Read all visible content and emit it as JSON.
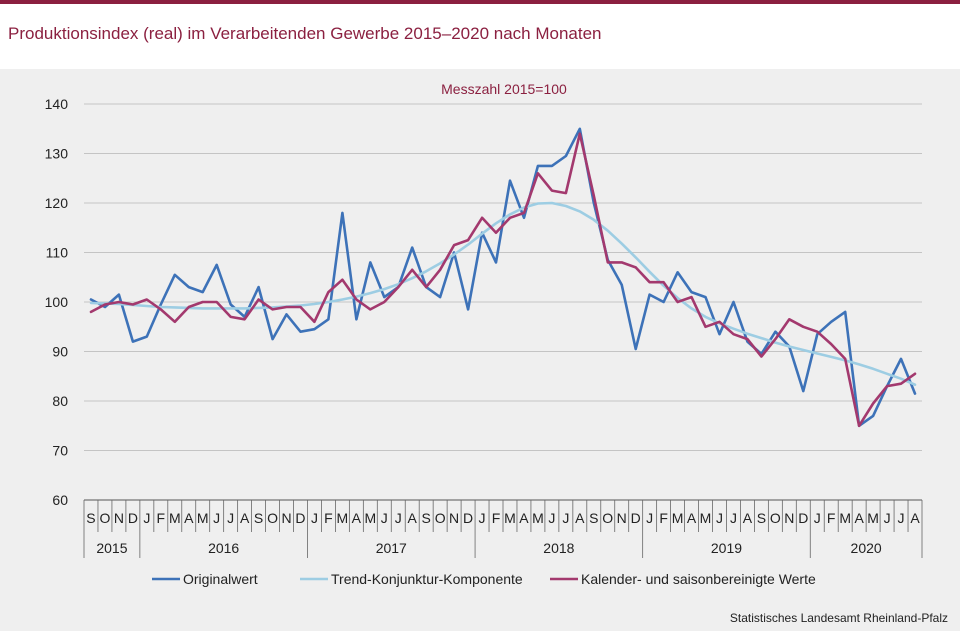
{
  "header": {
    "title": "Produktionsindex (real) im Verarbeitenden Gewerbe 2015–2020 nach Monaten"
  },
  "source": "Statistisches Landesamt Rheinland-Pfalz",
  "chart_data": {
    "type": "line",
    "subtitle": "Messzahl 2015=100",
    "xlabel": "",
    "ylabel": "",
    "ylim": [
      60,
      140
    ],
    "yticks": [
      60,
      70,
      80,
      90,
      100,
      110,
      120,
      130,
      140
    ],
    "grid": true,
    "legend": "bottom",
    "month_labels": [
      "S",
      "O",
      "N",
      "D",
      "J",
      "F",
      "M",
      "A",
      "M",
      "J",
      "J",
      "A",
      "S",
      "O",
      "N",
      "D",
      "J",
      "F",
      "M",
      "A",
      "M",
      "J",
      "J",
      "A",
      "S",
      "O",
      "N",
      "D",
      "J",
      "F",
      "M",
      "A",
      "M",
      "J",
      "J",
      "A",
      "S",
      "O",
      "N",
      "D",
      "J",
      "F",
      "M",
      "A",
      "M",
      "J",
      "J",
      "A",
      "S",
      "O",
      "N",
      "D",
      "J",
      "F",
      "M",
      "A",
      "M",
      "J",
      "J",
      "A"
    ],
    "year_groups": [
      {
        "label": "2015",
        "count": 4
      },
      {
        "label": "2016",
        "count": 12
      },
      {
        "label": "2017",
        "count": 12
      },
      {
        "label": "2018",
        "count": 12
      },
      {
        "label": "2019",
        "count": 12
      },
      {
        "label": "2020",
        "count": 8
      }
    ],
    "series": [
      {
        "name": "Originalwert",
        "color": "#3d72b8",
        "values": [
          100.5,
          99.0,
          101.5,
          92.0,
          93.0,
          99.5,
          105.5,
          103.0,
          102.0,
          107.5,
          99.5,
          97.0,
          103.0,
          92.5,
          97.5,
          94.0,
          94.5,
          96.5,
          118.0,
          96.5,
          108.0,
          101.0,
          103.0,
          111.0,
          103.0,
          101.0,
          110.0,
          98.5,
          114.0,
          108.0,
          124.5,
          117.0,
          127.5,
          127.5,
          129.5,
          135.0,
          120.0,
          108.5,
          103.5,
          90.5,
          101.5,
          100.0,
          106.0,
          102.0,
          101.0,
          93.5,
          100.0,
          92.0,
          89.5,
          94.0,
          91.0,
          82.0,
          93.5,
          96.0,
          98.0,
          75.0,
          77.0,
          83.0,
          88.5,
          81.5
        ]
      },
      {
        "name": "Trend-Konjunktur-Komponente",
        "color": "#9dcde3",
        "values": [
          99.8,
          99.7,
          99.6,
          99.4,
          99.2,
          99.0,
          98.9,
          98.8,
          98.7,
          98.7,
          98.7,
          98.7,
          98.8,
          98.9,
          99.1,
          99.3,
          99.6,
          100.0,
          100.5,
          101.1,
          101.8,
          102.6,
          103.6,
          104.8,
          106.2,
          107.8,
          109.6,
          111.6,
          113.8,
          115.9,
          117.7,
          119.1,
          119.9,
          120.0,
          119.4,
          118.3,
          116.6,
          114.4,
          111.8,
          109.0,
          106.1,
          103.3,
          100.8,
          98.7,
          97.0,
          95.7,
          94.6,
          93.6,
          92.7,
          91.8,
          91.0,
          90.3,
          89.6,
          88.9,
          88.2,
          87.4,
          86.5,
          85.5,
          84.5,
          83.3
        ]
      },
      {
        "name": "Kalender- und saisonbereinigte Werte",
        "color": "#a3396e",
        "values": [
          98.0,
          99.5,
          100.0,
          99.5,
          100.5,
          98.5,
          96.0,
          99.0,
          100.0,
          100.0,
          97.0,
          96.5,
          100.5,
          98.5,
          99.0,
          99.0,
          96.0,
          102.0,
          104.5,
          100.5,
          98.5,
          100.0,
          103.0,
          106.5,
          103.0,
          106.5,
          111.5,
          112.5,
          117.0,
          114.0,
          117.0,
          118.0,
          126.0,
          122.5,
          122.0,
          134.0,
          121.5,
          108.0,
          108.0,
          107.0,
          104.0,
          104.0,
          100.0,
          101.0,
          95.0,
          96.0,
          93.5,
          92.5,
          89.0,
          92.5,
          96.5,
          95.0,
          94.0,
          91.5,
          88.5,
          75.0,
          79.5,
          83.0,
          83.5,
          85.5
        ]
      }
    ]
  }
}
